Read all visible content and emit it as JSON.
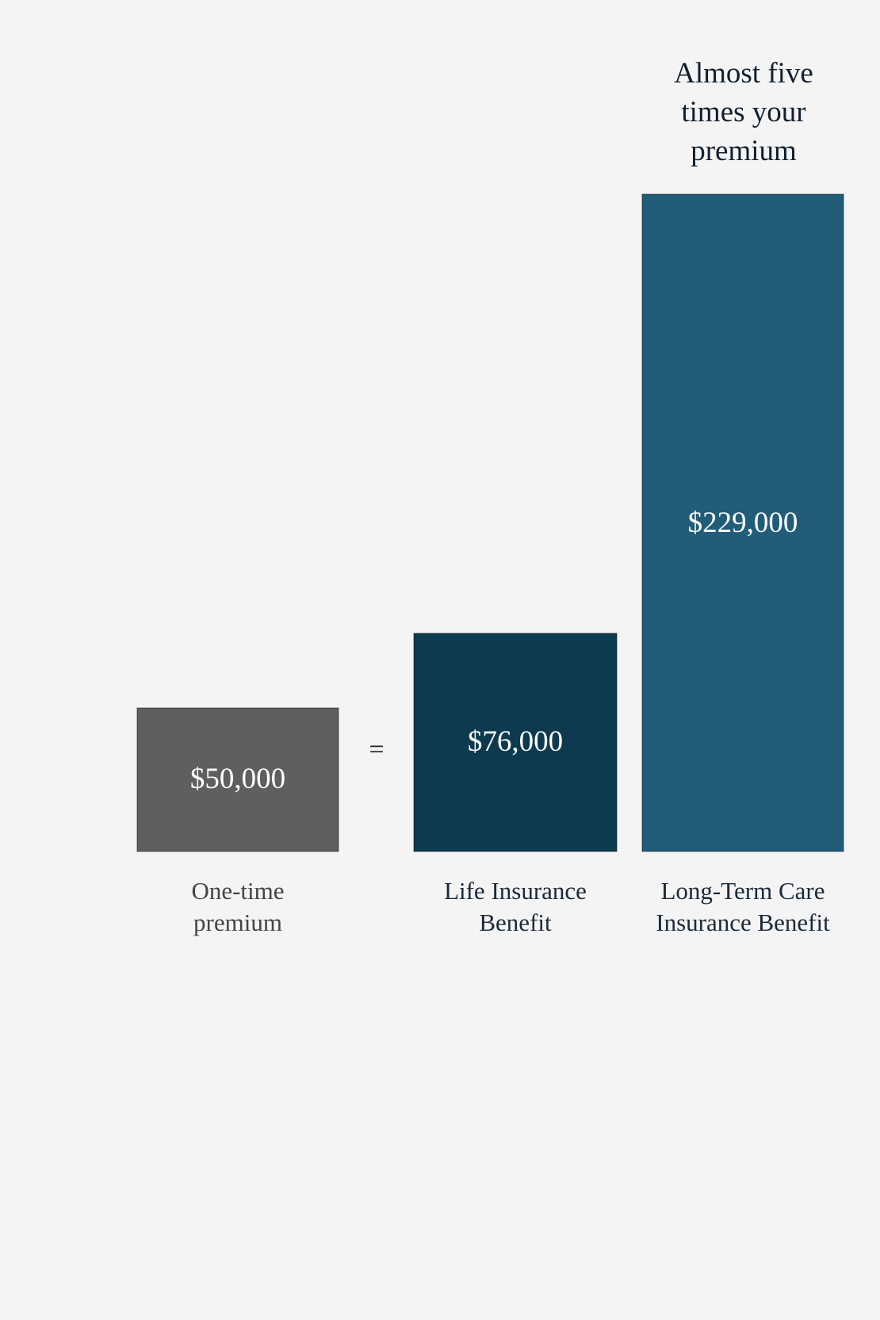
{
  "chart_data": {
    "type": "bar",
    "annotation": "Almost five times your premium",
    "operator": "=",
    "categories": [
      "One-time premium",
      "Life Insurance Benefit",
      "Long-Term Care Insurance Benefit"
    ],
    "values": [
      50000,
      76000,
      229000
    ],
    "value_labels": [
      "$50,000",
      "$76,000",
      "$229,000"
    ],
    "colors": [
      "#5f5f5f",
      "#0e3a50",
      "#215d79"
    ]
  }
}
